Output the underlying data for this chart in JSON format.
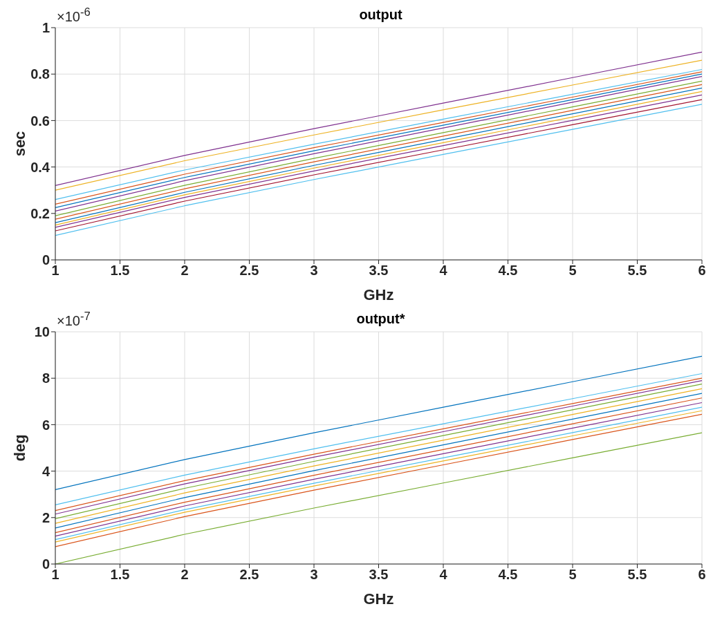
{
  "chart_data": [
    {
      "type": "line",
      "title": "output",
      "xlabel": "GHz",
      "ylabel": "sec",
      "annotations": [
        "×10$^{-6}$"
      ],
      "grid": true,
      "x": [
        1,
        2,
        3,
        4,
        5,
        6
      ],
      "xlim": [
        1,
        6
      ],
      "xticks": [
        1,
        1.5,
        2,
        2.5,
        3,
        3.5,
        4,
        4.5,
        5,
        5.5,
        6
      ],
      "ylim": [
        0,
        1
      ],
      "yticks": [
        0,
        0.2,
        0.4,
        0.6,
        0.8,
        1
      ],
      "series": [
        {
          "color": "#7e2f8e",
          "values": [
            0.32,
            0.45,
            0.565,
            0.675,
            0.785,
            0.895
          ]
        },
        {
          "color": "#edb120",
          "values": [
            0.3,
            0.427,
            0.538,
            0.646,
            0.753,
            0.86
          ]
        },
        {
          "color": "#4dbeee",
          "values": [
            0.26,
            0.387,
            0.498,
            0.606,
            0.713,
            0.82
          ]
        },
        {
          "color": "#d95319",
          "values": [
            0.24,
            0.369,
            0.483,
            0.592,
            0.701,
            0.81
          ]
        },
        {
          "color": "#0072bd",
          "values": [
            0.225,
            0.355,
            0.47,
            0.58,
            0.69,
            0.8
          ]
        },
        {
          "color": "#7e2f8e",
          "values": [
            0.21,
            0.341,
            0.457,
            0.568,
            0.679,
            0.79
          ]
        },
        {
          "color": "#77ac30",
          "values": [
            0.19,
            0.321,
            0.437,
            0.548,
            0.659,
            0.77
          ]
        },
        {
          "color": "#d95319",
          "values": [
            0.175,
            0.306,
            0.422,
            0.533,
            0.644,
            0.755
          ]
        },
        {
          "color": "#0072bd",
          "values": [
            0.16,
            0.291,
            0.407,
            0.518,
            0.629,
            0.74
          ]
        },
        {
          "color": "#edb120",
          "values": [
            0.15,
            0.28,
            0.395,
            0.505,
            0.615,
            0.725
          ]
        },
        {
          "color": "#7e2f8e",
          "values": [
            0.14,
            0.269,
            0.383,
            0.492,
            0.601,
            0.71
          ]
        },
        {
          "color": "#a2142f",
          "values": [
            0.125,
            0.253,
            0.366,
            0.474,
            0.582,
            0.69
          ]
        },
        {
          "color": "#4dbeee",
          "values": [
            0.105,
            0.233,
            0.346,
            0.454,
            0.562,
            0.67
          ]
        }
      ]
    },
    {
      "type": "line",
      "title": "output*",
      "xlabel": "GHz",
      "ylabel": "deg",
      "annotations": [
        "×10$^{-7}$"
      ],
      "grid": true,
      "x": [
        1,
        2,
        3,
        4,
        5,
        6
      ],
      "xlim": [
        1,
        6
      ],
      "xticks": [
        1,
        1.5,
        2,
        2.5,
        3,
        3.5,
        4,
        4.5,
        5,
        5.5,
        6
      ],
      "ylim": [
        0,
        10
      ],
      "yticks": [
        0,
        2,
        4,
        6,
        8,
        10
      ],
      "series": [
        {
          "color": "#0072bd",
          "values": [
            3.2,
            4.5,
            5.65,
            6.75,
            7.85,
            8.95
          ]
        },
        {
          "color": "#4dbeee",
          "values": [
            2.55,
            3.83,
            4.96,
            6.04,
            7.12,
            8.2
          ]
        },
        {
          "color": "#d95319",
          "values": [
            2.3,
            3.59,
            4.73,
            5.82,
            6.91,
            8
          ]
        },
        {
          "color": "#7e2f8e",
          "values": [
            2.15,
            3.45,
            4.6,
            5.7,
            6.8,
            7.9
          ]
        },
        {
          "color": "#77ac30",
          "values": [
            1.95,
            3.26,
            4.42,
            5.53,
            6.64,
            7.75
          ]
        },
        {
          "color": "#edb120",
          "values": [
            1.75,
            3.06,
            4.22,
            5.33,
            6.44,
            7.55
          ]
        },
        {
          "color": "#0072bd",
          "values": [
            1.55,
            2.86,
            4.02,
            5.13,
            6.24,
            7.35
          ]
        },
        {
          "color": "#d95319",
          "values": [
            1.35,
            2.66,
            3.82,
            4.93,
            6.04,
            7.15
          ]
        },
        {
          "color": "#7e2f8e",
          "values": [
            1.2,
            2.5,
            3.65,
            4.75,
            5.85,
            6.95
          ]
        },
        {
          "color": "#4dbeee",
          "values": [
            1.05,
            2.34,
            3.48,
            4.57,
            5.66,
            6.75
          ]
        },
        {
          "color": "#edb120",
          "values": [
            0.95,
            2.23,
            3.36,
            4.44,
            5.52,
            6.6
          ]
        },
        {
          "color": "#d95319",
          "values": [
            0.75,
            2.04,
            3.18,
            4.27,
            5.36,
            6.45
          ]
        },
        {
          "color": "#77ac30",
          "values": [
            0,
            1.28,
            2.41,
            3.49,
            4.57,
            5.65
          ]
        }
      ]
    }
  ]
}
